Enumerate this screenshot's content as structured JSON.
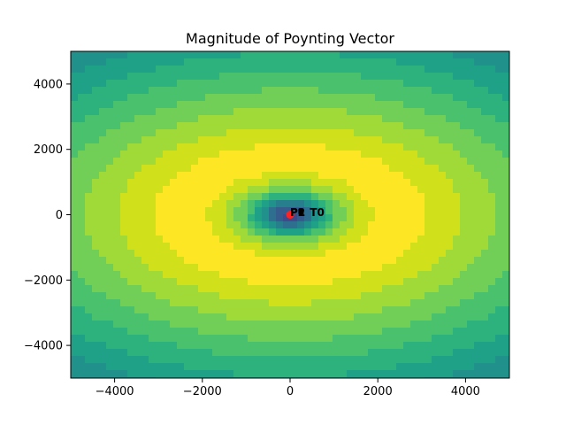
{
  "chart_data": {
    "type": "heatmap",
    "subtype": "filled-contour",
    "title": "Magnitude of Poynting Vector",
    "xlabel": "",
    "ylabel": "",
    "xlim": [
      -5000,
      5000
    ],
    "ylim": [
      -5000,
      5000
    ],
    "xticks": [
      -4000,
      -2000,
      0,
      2000,
      4000
    ],
    "yticks": [
      -4000,
      -2000,
      0,
      2000,
      4000
    ],
    "xtick_labels": [
      "−4000",
      "−2000",
      "0",
      "2000",
      "4000"
    ],
    "ytick_labels": [
      "−4000",
      "−2000",
      "0",
      "2000",
      "4000"
    ],
    "grid": false,
    "colormap": "viridis",
    "field": {
      "center": [
        0,
        0
      ],
      "core_radius_x": 700,
      "core_radius_y": 500,
      "peak_radius_x": 2300,
      "peak_radius_y": 1600,
      "description_of_levels": "lowest at center, rising to maximum on an elliptical ring, decreasing toward corners"
    },
    "annotations": [
      {
        "text": "P1",
        "x": 0,
        "y": 100
      },
      {
        "text": "P2",
        "x": 0,
        "y": 100
      },
      {
        "text": "T0",
        "x": 450,
        "y": 100
      }
    ],
    "markers": [
      {
        "name": "source",
        "x": 0,
        "y": 0,
        "color": "#ff2222"
      },
      {
        "name": "probe",
        "x": 250,
        "y": 100,
        "color": "#000000"
      }
    ]
  }
}
